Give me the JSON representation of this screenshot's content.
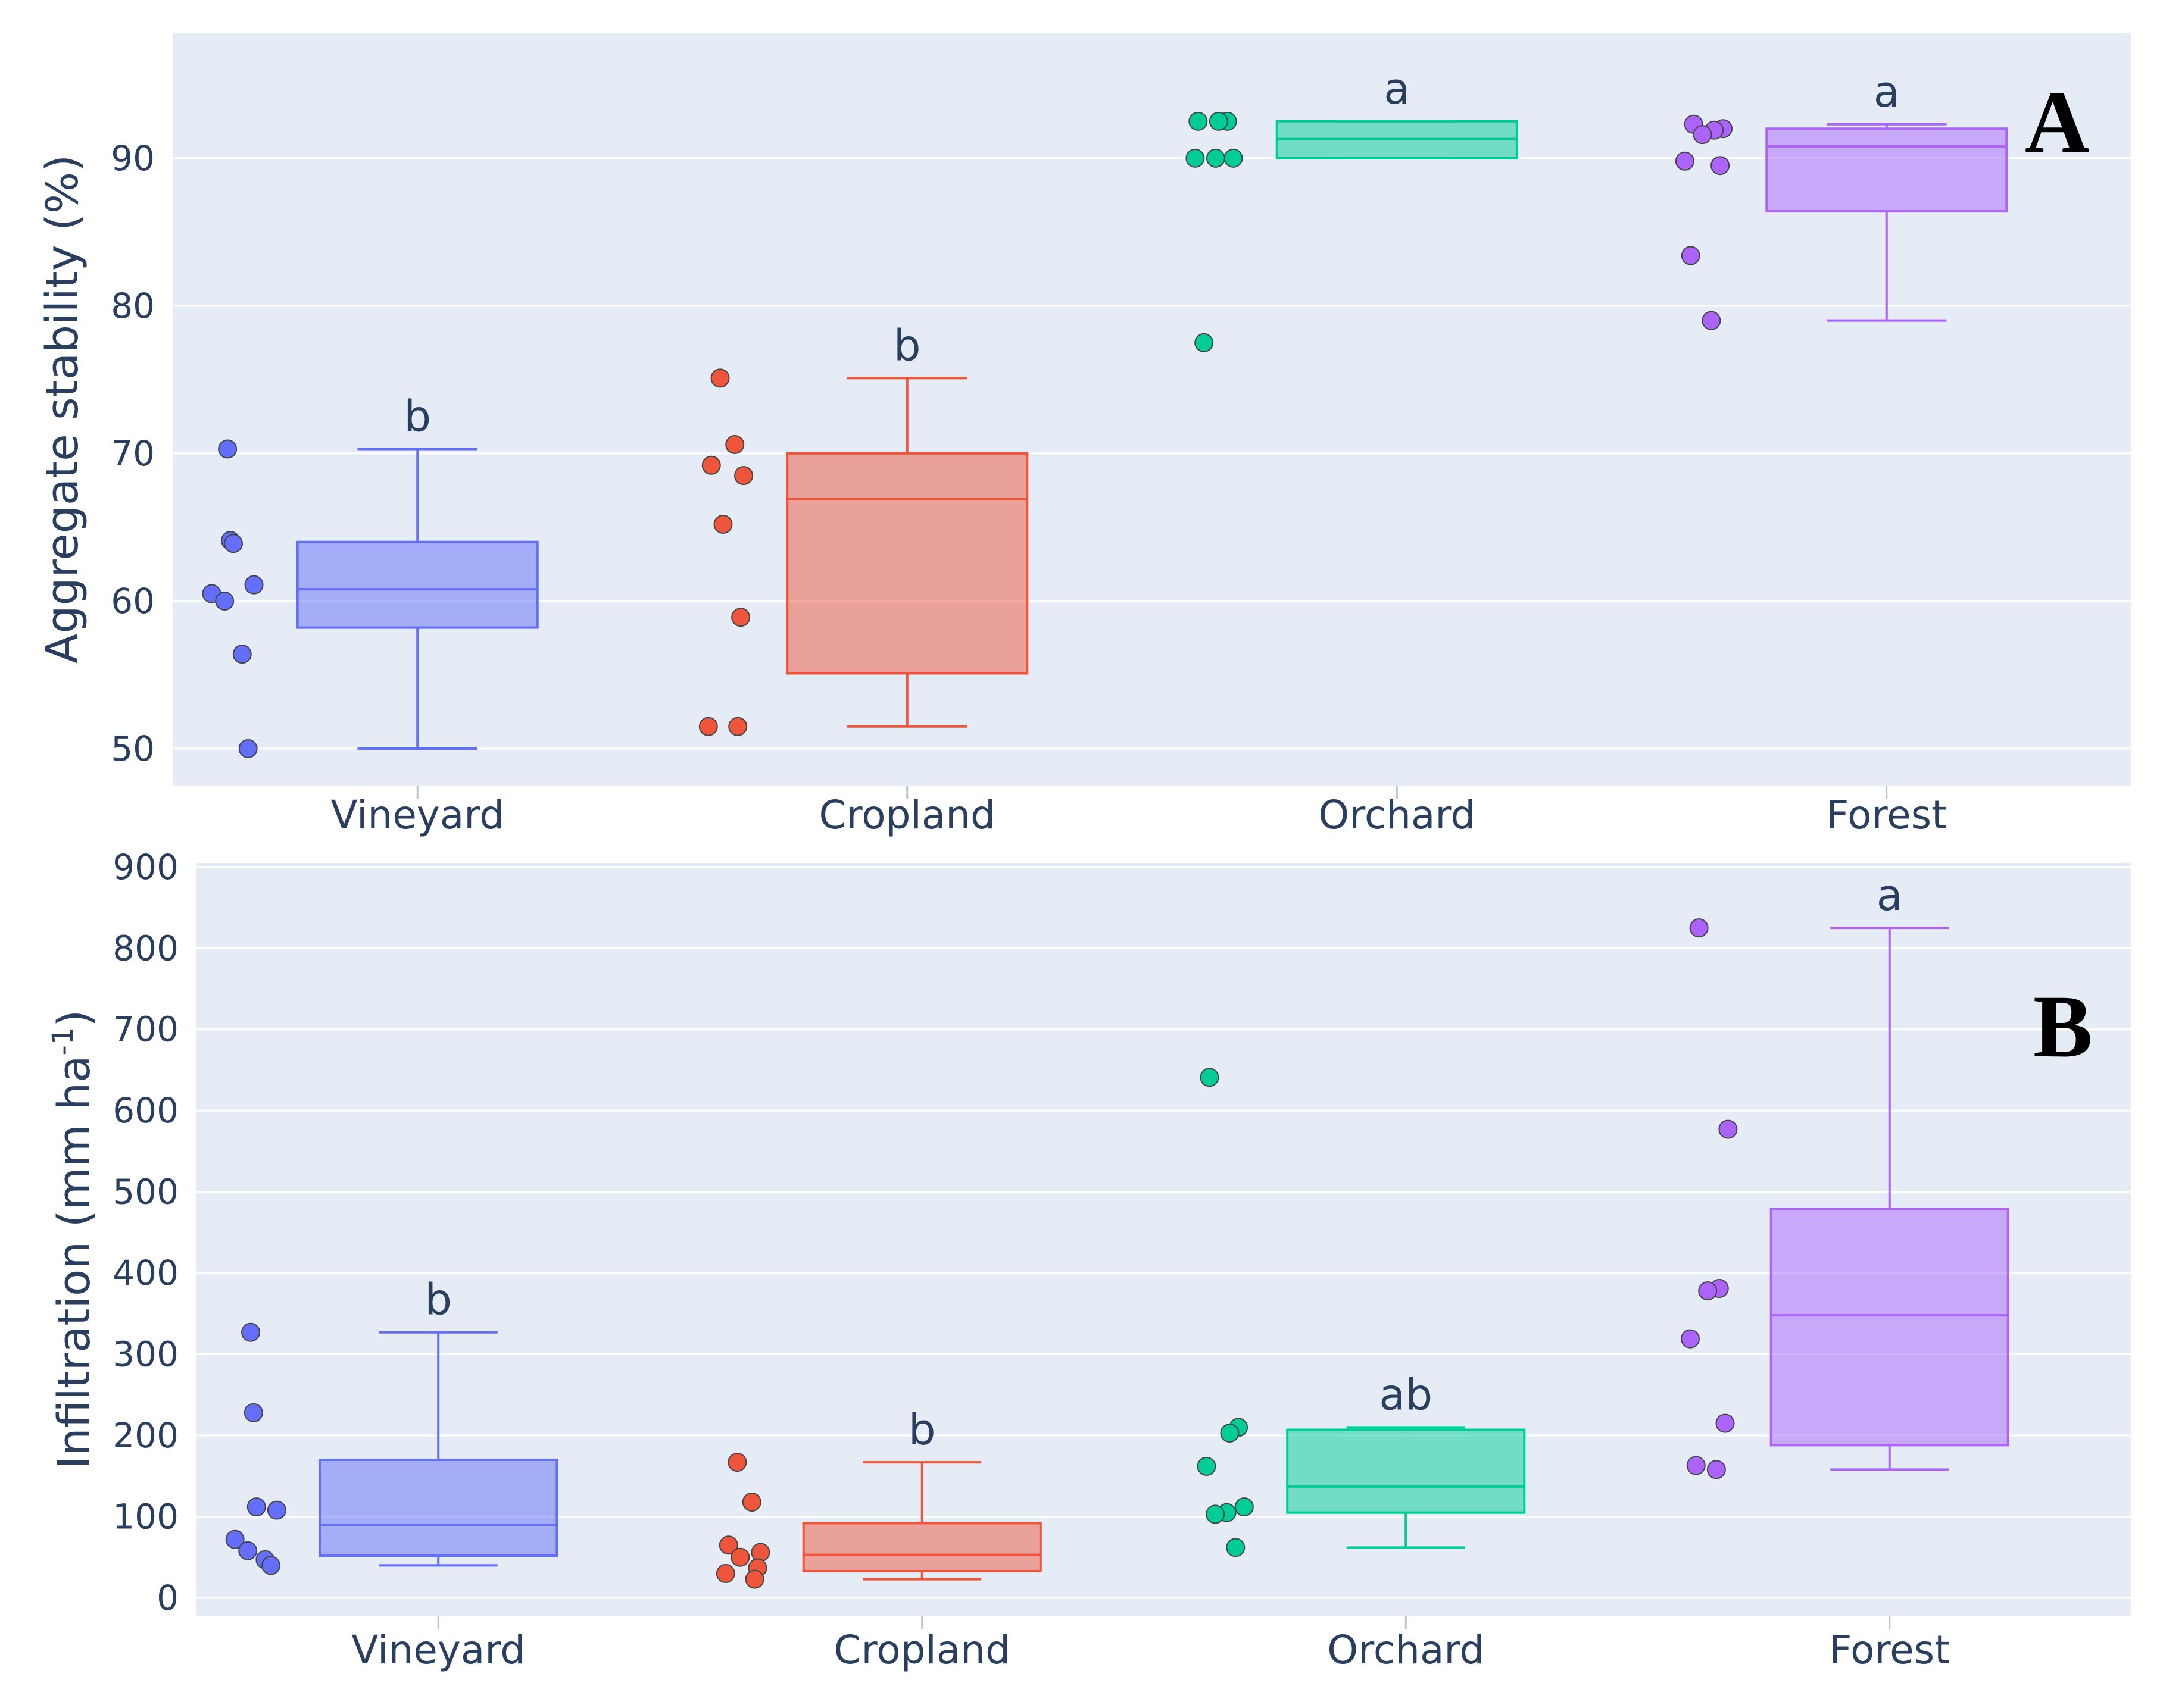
{
  "chart_data": [
    {
      "type": "box",
      "panel_label": "A",
      "ylabel": "Aggregate stability (%)",
      "ylim": [
        47.5,
        98.5
      ],
      "yticks": [
        50,
        60,
        70,
        80,
        90
      ],
      "categories": [
        "Vineyard",
        "Cropland",
        "Orchard",
        "Forest"
      ],
      "colors": [
        "#636efa",
        "#ef553b",
        "#00cc96",
        "#ab63fa"
      ],
      "boxes": [
        {
          "name": "Vineyard",
          "min": 50.0,
          "q1": 58.2,
          "median": 60.8,
          "q3": 64.0,
          "max": 70.3,
          "letter": "b",
          "points": [
            70.3,
            64.1,
            63.9,
            61.1,
            60.5,
            60.0,
            56.4,
            50.0
          ]
        },
        {
          "name": "Cropland",
          "min": 51.5,
          "q1": 55.1,
          "median": 66.9,
          "q3": 70.0,
          "max": 75.1,
          "letter": "b",
          "points": [
            75.1,
            70.6,
            69.2,
            68.5,
            65.2,
            58.9,
            51.5,
            51.5
          ]
        },
        {
          "name": "Orchard",
          "min": 90.0,
          "q1": 90.0,
          "median": 91.3,
          "q3": 92.5,
          "max": 92.5,
          "letter": "a",
          "points": [
            92.5,
            92.5,
            92.5,
            90.0,
            90.0,
            90.0,
            77.5
          ]
        },
        {
          "name": "Forest",
          "min": 79.0,
          "q1": 86.4,
          "median": 90.8,
          "q3": 92.0,
          "max": 92.3,
          "letter": "a",
          "points": [
            92.3,
            92.0,
            91.9,
            91.6,
            89.8,
            89.5,
            83.4,
            79.0
          ]
        }
      ]
    },
    {
      "type": "box",
      "panel_label": "B",
      "ylabel": "Infiltration (mm ha",
      "ylabel_sup": "-1",
      "ylabel_close": ")",
      "ylim": [
        -22,
        905
      ],
      "yticks": [
        0,
        100,
        200,
        300,
        400,
        500,
        600,
        700,
        800,
        900
      ],
      "categories": [
        "Vineyard",
        "Cropland",
        "Orchard",
        "Forest"
      ],
      "colors": [
        "#636efa",
        "#ef553b",
        "#00cc96",
        "#ab63fa"
      ],
      "boxes": [
        {
          "name": "Vineyard",
          "min": 40,
          "q1": 52,
          "median": 90,
          "q3": 170,
          "max": 327,
          "letter": "b",
          "points": [
            327,
            228,
            112,
            108,
            72,
            58,
            47,
            40
          ]
        },
        {
          "name": "Cropland",
          "min": 23,
          "q1": 33,
          "median": 53,
          "q3": 92,
          "max": 167,
          "letter": "b",
          "points": [
            167,
            118,
            65,
            56,
            50,
            37,
            30,
            23
          ]
        },
        {
          "name": "Orchard",
          "min": 62,
          "q1": 105,
          "median": 137,
          "q3": 207,
          "max": 210,
          "letter": "ab",
          "points": [
            641,
            210,
            203,
            162,
            112,
            105,
            103,
            62
          ]
        },
        {
          "name": "Forest",
          "min": 158,
          "q1": 188,
          "median": 348,
          "q3": 479,
          "max": 825,
          "letter": "a",
          "points": [
            825,
            577,
            381,
            378,
            319,
            215,
            163,
            158
          ]
        }
      ]
    }
  ]
}
